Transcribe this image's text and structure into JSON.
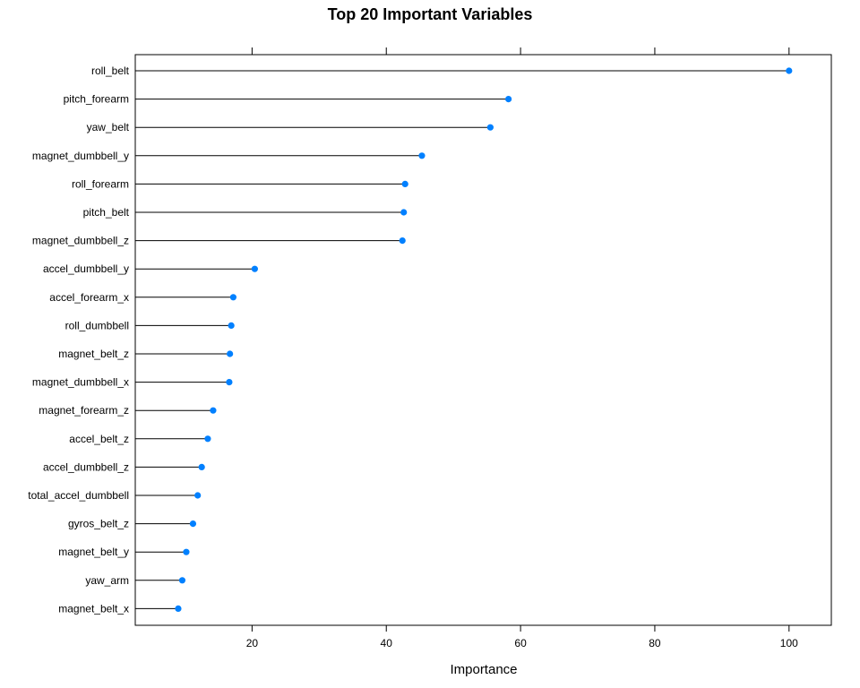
{
  "chart_data": {
    "type": "dotplot",
    "title": "Top 20 Important Variables",
    "xlabel": "Importance",
    "ylabel": "",
    "xlim": [
      2.6,
      106.3
    ],
    "xticks": [
      20,
      40,
      60,
      80,
      100
    ],
    "grid": false,
    "legend": "none",
    "colors": {
      "point": "#0080ff",
      "line": "#000000",
      "axis": "#000000"
    },
    "categories": [
      "roll_belt",
      "pitch_forearm",
      "yaw_belt",
      "magnet_dumbbell_y",
      "roll_forearm",
      "pitch_belt",
      "magnet_dumbbell_z",
      "accel_dumbbell_y",
      "accel_forearm_x",
      "roll_dumbbell",
      "magnet_belt_z",
      "magnet_dumbbell_x",
      "magnet_forearm_z",
      "accel_belt_z",
      "accel_dumbbell_z",
      "total_accel_dumbbell",
      "gyros_belt_z",
      "magnet_belt_y",
      "yaw_arm",
      "magnet_belt_x"
    ],
    "values": [
      100,
      58.2,
      55.5,
      45.3,
      42.8,
      42.6,
      42.4,
      20.4,
      17.2,
      16.9,
      16.7,
      16.6,
      14.2,
      13.4,
      12.5,
      11.9,
      11.2,
      10.2,
      9.6,
      9.0
    ]
  }
}
